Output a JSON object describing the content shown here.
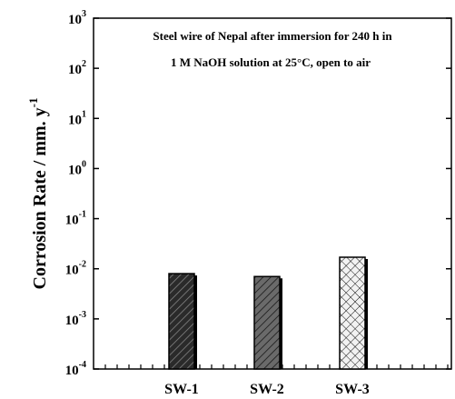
{
  "chart_data": {
    "type": "bar",
    "title_lines": [
      "Steel wire of Nepal after immersion for 240 h in",
      "1 M NaOH solution at 25°C, open to air"
    ],
    "ylabel": "Corrosion Rate / mm. y",
    "ylabel_exponent": "-1",
    "categories": [
      "SW-1",
      "SW-2",
      "SW-3"
    ],
    "values": [
      0.008,
      0.007,
      0.017
    ],
    "colors": [
      "#2a2a2a",
      "#6a6a6a",
      "#f2f2f2"
    ],
    "log_scale": true,
    "ylim": [
      0.0001,
      1000
    ],
    "yticks": [
      {
        "value": 0.0001,
        "label": "10",
        "exponent": "-4"
      },
      {
        "value": 0.001,
        "label": "10",
        "exponent": "-3"
      },
      {
        "value": 0.01,
        "label": "10",
        "exponent": "-2"
      },
      {
        "value": 0.1,
        "label": "10",
        "exponent": "-1"
      },
      {
        "value": 1,
        "label": "10",
        "exponent": "0"
      },
      {
        "value": 10,
        "label": "10",
        "exponent": "1"
      },
      {
        "value": 100,
        "label": "10",
        "exponent": "2"
      },
      {
        "value": 1000,
        "label": "10",
        "exponent": "3"
      }
    ]
  }
}
